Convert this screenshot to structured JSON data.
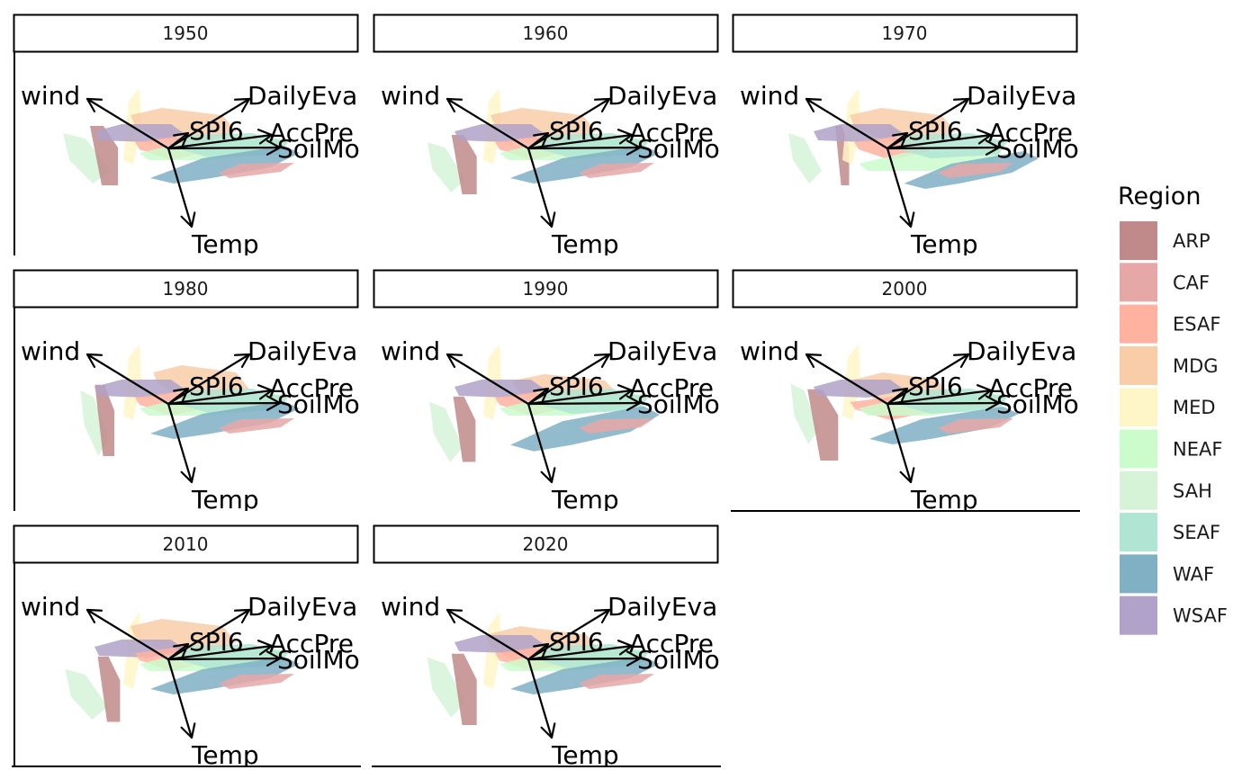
{
  "chart_data": {
    "type": "biplot",
    "facet_by": "decade",
    "panels": [
      "1950",
      "1960",
      "1970",
      "1980",
      "1990",
      "2000",
      "2010",
      "2020"
    ],
    "variables": [
      "wind",
      "DailyEva",
      "SPI6",
      "AccPre",
      "SoilMo",
      "Temp"
    ],
    "legend": {
      "title": "Region",
      "position": "right",
      "items": [
        {
          "name": "ARP",
          "color": "#C18A8A"
        },
        {
          "name": "CAF",
          "color": "#E6A7A7"
        },
        {
          "name": "ESAF",
          "color": "#FFB2A0"
        },
        {
          "name": "MDG",
          "color": "#F8CDA8"
        },
        {
          "name": "MED",
          "color": "#FFF6C8"
        },
        {
          "name": "NEAF",
          "color": "#CCFCCC"
        },
        {
          "name": "SAH",
          "color": "#D6F3D8"
        },
        {
          "name": "SEAF",
          "color": "#B0E5D3"
        },
        {
          "name": "WAF",
          "color": "#7FB0C4"
        },
        {
          "name": "WSAF",
          "color": "#B0A2C9"
        }
      ]
    }
  }
}
